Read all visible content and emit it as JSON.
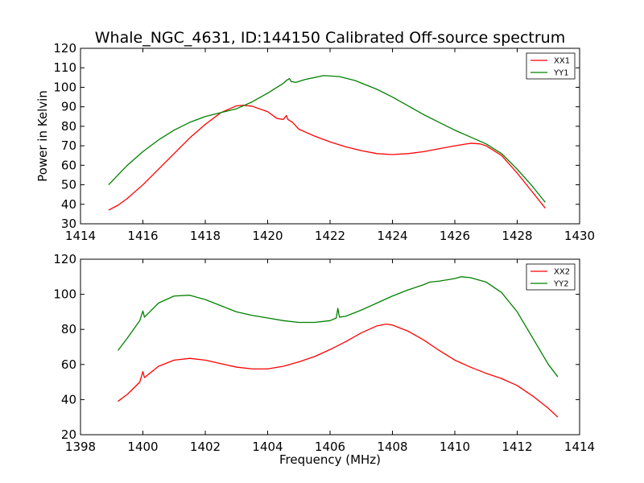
{
  "title": "Whale_NGC_4631, ID:144150 Calibrated Off-source spectrum",
  "chart_data": [
    {
      "type": "line",
      "title": "Whale_NGC_4631, ID:144150 Calibrated Off-source spectrum",
      "xlabel": "",
      "ylabel": "Power in Kelvin",
      "xlim": [
        1414,
        1430
      ],
      "ylim": [
        30,
        120
      ],
      "xticks": [
        1414,
        1416,
        1418,
        1420,
        1422,
        1424,
        1426,
        1428,
        1430
      ],
      "yticks": [
        30,
        40,
        50,
        60,
        70,
        80,
        90,
        100,
        110,
        120
      ],
      "grid": false,
      "legend": "top-right",
      "series": [
        {
          "name": "XX1",
          "color": "#ff0000",
          "points": [
            [
              1414.9,
              37
            ],
            [
              1415.2,
              39.5
            ],
            [
              1415.5,
              43
            ],
            [
              1416,
              50
            ],
            [
              1416.5,
              58
            ],
            [
              1417,
              66
            ],
            [
              1417.5,
              74
            ],
            [
              1418,
              81
            ],
            [
              1418.5,
              87
            ],
            [
              1419,
              90.5
            ],
            [
              1419.2,
              90.8
            ],
            [
              1419.5,
              90.3
            ],
            [
              1420,
              87.5
            ],
            [
              1420.3,
              84
            ],
            [
              1420.5,
              83.5
            ],
            [
              1420.6,
              85.5
            ],
            [
              1420.65,
              83.5
            ],
            [
              1420.8,
              82
            ],
            [
              1421,
              78.5
            ],
            [
              1421.5,
              75
            ],
            [
              1422,
              72
            ],
            [
              1422.5,
              69.5
            ],
            [
              1423,
              67.5
            ],
            [
              1423.5,
              66
            ],
            [
              1424,
              65.5
            ],
            [
              1424.5,
              66
            ],
            [
              1425,
              67
            ],
            [
              1425.5,
              68.5
            ],
            [
              1426,
              70
            ],
            [
              1426.5,
              71.3
            ],
            [
              1426.8,
              71
            ],
            [
              1427,
              70
            ],
            [
              1427.5,
              65
            ],
            [
              1428,
              56
            ],
            [
              1428.5,
              46
            ],
            [
              1428.9,
              38
            ]
          ]
        },
        {
          "name": "YY1",
          "color": "#008000",
          "points": [
            [
              1414.9,
              50
            ],
            [
              1415.2,
              55
            ],
            [
              1415.5,
              60
            ],
            [
              1416,
              67
            ],
            [
              1416.5,
              73
            ],
            [
              1417,
              78
            ],
            [
              1417.5,
              82
            ],
            [
              1418,
              85
            ],
            [
              1418.5,
              87
            ],
            [
              1419,
              89
            ],
            [
              1419.5,
              92.5
            ],
            [
              1420,
              97
            ],
            [
              1420.3,
              100
            ],
            [
              1420.5,
              102
            ],
            [
              1420.6,
              103.5
            ],
            [
              1420.7,
              104.5
            ],
            [
              1420.75,
              103
            ],
            [
              1420.9,
              102.5
            ],
            [
              1421.2,
              104
            ],
            [
              1421.8,
              106
            ],
            [
              1422.3,
              105.5
            ],
            [
              1422.8,
              103.5
            ],
            [
              1423.5,
              99
            ],
            [
              1424,
              95
            ],
            [
              1424.5,
              90.5
            ],
            [
              1425,
              86
            ],
            [
              1425.5,
              82
            ],
            [
              1426,
              78
            ],
            [
              1426.5,
              74.5
            ],
            [
              1427,
              71
            ],
            [
              1427.5,
              66
            ],
            [
              1428,
              58
            ],
            [
              1428.5,
              49
            ],
            [
              1428.9,
              41
            ]
          ]
        }
      ]
    },
    {
      "type": "line",
      "title": "",
      "xlabel": "Frequency (MHz)",
      "ylabel": "",
      "xlim": [
        1398,
        1414
      ],
      "ylim": [
        20,
        120
      ],
      "xticks": [
        1398,
        1400,
        1402,
        1404,
        1406,
        1408,
        1410,
        1412,
        1414
      ],
      "yticks": [
        20,
        40,
        60,
        80,
        100,
        120
      ],
      "grid": false,
      "legend": "top-right",
      "series": [
        {
          "name": "XX2",
          "color": "#ff0000",
          "points": [
            [
              1399.2,
              39
            ],
            [
              1399.5,
              43
            ],
            [
              1399.9,
              50
            ],
            [
              1400,
              56
            ],
            [
              1400.05,
              52.5
            ],
            [
              1400.5,
              59
            ],
            [
              1401,
              62.5
            ],
            [
              1401.5,
              63.5
            ],
            [
              1402,
              62.5
            ],
            [
              1402.5,
              60.5
            ],
            [
              1403,
              58.5
            ],
            [
              1403.5,
              57.5
            ],
            [
              1404,
              57.5
            ],
            [
              1404.5,
              59
            ],
            [
              1405,
              61.5
            ],
            [
              1405.5,
              64.5
            ],
            [
              1406,
              68.5
            ],
            [
              1406.5,
              73
            ],
            [
              1407,
              78
            ],
            [
              1407.5,
              82
            ],
            [
              1407.8,
              83
            ],
            [
              1408,
              82.5
            ],
            [
              1408.5,
              79
            ],
            [
              1409,
              74
            ],
            [
              1409.5,
              68
            ],
            [
              1410,
              62.5
            ],
            [
              1410.5,
              58.5
            ],
            [
              1411,
              55
            ],
            [
              1411.5,
              52
            ],
            [
              1412,
              48
            ],
            [
              1412.5,
              42
            ],
            [
              1413,
              35
            ],
            [
              1413.3,
              30
            ]
          ]
        },
        {
          "name": "YY2",
          "color": "#008000",
          "points": [
            [
              1399.2,
              68
            ],
            [
              1399.5,
              75
            ],
            [
              1399.9,
              85
            ],
            [
              1400,
              90.5
            ],
            [
              1400.05,
              87
            ],
            [
              1400.5,
              95
            ],
            [
              1401,
              99
            ],
            [
              1401.5,
              99.5
            ],
            [
              1402,
              97
            ],
            [
              1402.5,
              93.5
            ],
            [
              1403,
              90
            ],
            [
              1403.5,
              88
            ],
            [
              1404,
              86.5
            ],
            [
              1404.5,
              85
            ],
            [
              1405,
              84
            ],
            [
              1405.5,
              84
            ],
            [
              1406,
              85
            ],
            [
              1406.2,
              86.5
            ],
            [
              1406.25,
              92
            ],
            [
              1406.3,
              87
            ],
            [
              1406.5,
              87.5
            ],
            [
              1407,
              91
            ],
            [
              1407.5,
              95
            ],
            [
              1408,
              99
            ],
            [
              1408.5,
              102.5
            ],
            [
              1409,
              105.5
            ],
            [
              1409.2,
              107
            ],
            [
              1409.5,
              107.5
            ],
            [
              1410,
              109
            ],
            [
              1410.2,
              110
            ],
            [
              1410.5,
              109.5
            ],
            [
              1411,
              107
            ],
            [
              1411.5,
              101
            ],
            [
              1412,
              90
            ],
            [
              1412.5,
              75
            ],
            [
              1413,
              60
            ],
            [
              1413.3,
              53
            ]
          ]
        }
      ]
    }
  ]
}
